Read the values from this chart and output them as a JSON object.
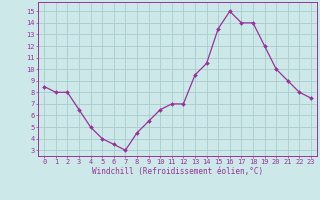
{
  "x": [
    0,
    1,
    2,
    3,
    4,
    5,
    6,
    7,
    8,
    9,
    10,
    11,
    12,
    13,
    14,
    15,
    16,
    17,
    18,
    19,
    20,
    21,
    22,
    23
  ],
  "y": [
    8.5,
    8.0,
    8.0,
    6.5,
    5.0,
    4.0,
    3.5,
    3.0,
    4.5,
    5.5,
    6.5,
    7.0,
    7.0,
    9.5,
    10.5,
    13.5,
    15.0,
    14.0,
    14.0,
    12.0,
    10.0,
    9.0,
    8.0,
    7.5
  ],
  "line_color": "#993399",
  "marker": "D",
  "marker_size": 2.0,
  "line_width": 0.9,
  "bg_color": "#cce8e8",
  "grid_color": "#aacccc",
  "xlabel": "Windchill (Refroidissement éolien,°C)",
  "xlabel_color": "#993399",
  "xlabel_fontsize": 5.5,
  "tick_color": "#993399",
  "tick_fontsize": 5.0,
  "ylim": [
    2.5,
    15.8
  ],
  "yticks": [
    3,
    4,
    5,
    6,
    7,
    8,
    9,
    10,
    11,
    12,
    13,
    14,
    15
  ],
  "xticks": [
    0,
    1,
    2,
    3,
    4,
    5,
    6,
    7,
    8,
    9,
    10,
    11,
    12,
    13,
    14,
    15,
    16,
    17,
    18,
    19,
    20,
    21,
    22,
    23
  ],
  "spine_color": "#993399",
  "axis_bg": "#cce8e8"
}
